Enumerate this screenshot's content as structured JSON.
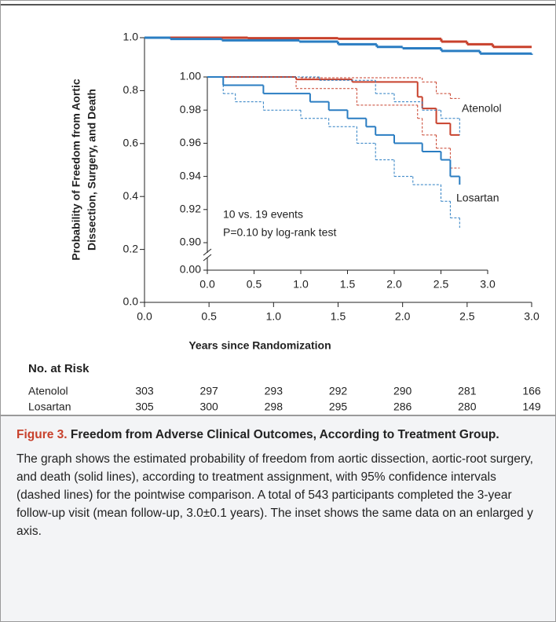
{
  "chart_data": [
    {
      "type": "line",
      "ylabel": [
        "Probability of Freedom from Aortic",
        "Dissection, Surgery, and Death"
      ],
      "xlabel": "Years since Randomization",
      "xlim": [
        0,
        3
      ],
      "ylim": [
        0,
        1
      ],
      "xticks": [
        {
          "value": 0,
          "label": "0.0"
        },
        {
          "value": 0.5,
          "label": "0.5"
        },
        {
          "value": 1,
          "label": "1.0"
        },
        {
          "value": 1.5,
          "label": "1.5"
        },
        {
          "value": 2,
          "label": "2.0"
        },
        {
          "value": 2.5,
          "label": "2.5"
        },
        {
          "value": 3,
          "label": "3.0"
        }
      ],
      "yticks": [
        {
          "value": 0,
          "label": "0.0"
        },
        {
          "value": 0.2,
          "label": "0.2"
        },
        {
          "value": 0.4,
          "label": "0.4"
        },
        {
          "value": 0.6,
          "label": "0.6"
        },
        {
          "value": 0.8,
          "label": "0.8"
        },
        {
          "value": 1,
          "label": "1.0"
        }
      ],
      "step": true,
      "series": [
        {
          "color": "#c8412c",
          "style": "solid",
          "x": [
            0,
            0.8,
            1.5,
            2.3,
            2.5,
            2.7,
            3.0
          ],
          "values": [
            1,
            0.998,
            0.996,
            0.985,
            0.975,
            0.965,
            0.965
          ]
        },
        {
          "color": "#2a7dc2",
          "style": "solid",
          "x": [
            0,
            0.2,
            0.6,
            1.2,
            1.5,
            1.8,
            2.0,
            2.3,
            2.6,
            3.0
          ],
          "values": [
            1,
            0.995,
            0.99,
            0.985,
            0.975,
            0.965,
            0.96,
            0.95,
            0.94,
            0.935
          ]
        }
      ]
    },
    {
      "type": "line",
      "xlim": [
        0,
        3
      ],
      "ylim": [
        0.9,
        1
      ],
      "xticks": [
        {
          "value": 0,
          "label": "0.0"
        },
        {
          "value": 0.5,
          "label": "0.5"
        },
        {
          "value": 1,
          "label": "1.0"
        },
        {
          "value": 1.5,
          "label": "1.5"
        },
        {
          "value": 2,
          "label": "2.0"
        },
        {
          "value": 2.5,
          "label": "2.5"
        },
        {
          "value": 3,
          "label": "3.0"
        }
      ],
      "yticks": [
        {
          "value": 0,
          "label": "0.00"
        },
        {
          "value": 0.9,
          "label": "0.90"
        },
        {
          "value": 0.92,
          "label": "0.92"
        },
        {
          "value": 0.94,
          "label": "0.94"
        },
        {
          "value": 0.96,
          "label": "0.96"
        },
        {
          "value": 0.98,
          "label": "0.98"
        },
        {
          "value": 1,
          "label": "1.00"
        }
      ],
      "y_axis_break": true,
      "step": true,
      "annotations": [
        "10 vs. 19 events",
        "P=0.10 by log-rank test"
      ],
      "series": [
        {
          "name": "Atenolol",
          "color": "#c8412c",
          "style": "solid",
          "x": [
            0,
            0.95,
            1.55,
            2.25,
            2.3,
            2.45,
            2.6,
            2.7
          ],
          "values": [
            1,
            0.9985,
            0.997,
            0.988,
            0.981,
            0.972,
            0.965,
            0.965
          ]
        },
        {
          "color": "#c8412c",
          "style": "dashed",
          "x": [
            0,
            1.0,
            2.3,
            2.45,
            2.6,
            2.7
          ],
          "values": [
            1,
            0.9995,
            0.997,
            0.99,
            0.987,
            0.987
          ]
        },
        {
          "color": "#c8412c",
          "style": "dashed",
          "x": [
            0,
            0.95,
            1.6,
            2.25,
            2.3,
            2.45,
            2.6,
            2.7
          ],
          "values": [
            1,
            0.993,
            0.983,
            0.975,
            0.965,
            0.957,
            0.945,
            0.945
          ]
        },
        {
          "name": "Losartan",
          "color": "#2a7dc2",
          "style": "solid",
          "x": [
            0,
            0.17,
            0.6,
            1.1,
            1.3,
            1.5,
            1.7,
            1.8,
            2.0,
            2.3,
            2.5,
            2.6,
            2.7
          ],
          "values": [
            1,
            0.995,
            0.99,
            0.985,
            0.98,
            0.975,
            0.97,
            0.965,
            0.96,
            0.955,
            0.95,
            0.94,
            0.935
          ]
        },
        {
          "color": "#2a7dc2",
          "style": "dashed",
          "x": [
            0,
            1.2,
            1.8,
            2.0,
            2.3,
            2.5,
            2.7
          ],
          "values": [
            1,
            0.998,
            0.99,
            0.985,
            0.98,
            0.975,
            0.965
          ]
        },
        {
          "color": "#2a7dc2",
          "style": "dashed",
          "x": [
            0,
            0.17,
            0.3,
            0.6,
            1.0,
            1.3,
            1.6,
            1.8,
            2.0,
            2.2,
            2.5,
            2.6,
            2.7
          ],
          "values": [
            1,
            0.99,
            0.985,
            0.98,
            0.975,
            0.97,
            0.96,
            0.95,
            0.94,
            0.935,
            0.925,
            0.915,
            0.909
          ]
        }
      ]
    }
  ],
  "risk_table": {
    "title": "No. at Risk",
    "rows": [
      {
        "name": "Atenolol",
        "values": [
          303,
          297,
          293,
          292,
          290,
          281,
          166
        ]
      },
      {
        "name": "Losartan",
        "values": [
          305,
          300,
          298,
          295,
          286,
          280,
          149
        ]
      }
    ]
  },
  "caption": {
    "label": "Figure 3.",
    "title": "Freedom from Adverse Clinical Outcomes, According to Treatment Group.",
    "text": "The graph shows the estimated probability of freedom from aortic dissection, aortic-root surgery, and death (solid lines), according to treatment assignment, with 95% confidence intervals (dashed lines) for the pointwise comparison. A total of 543 participants completed the 3-year follow-up visit (mean follow-up, 3.0±0.1 years). The inset shows the same data on an enlarged y axis."
  }
}
